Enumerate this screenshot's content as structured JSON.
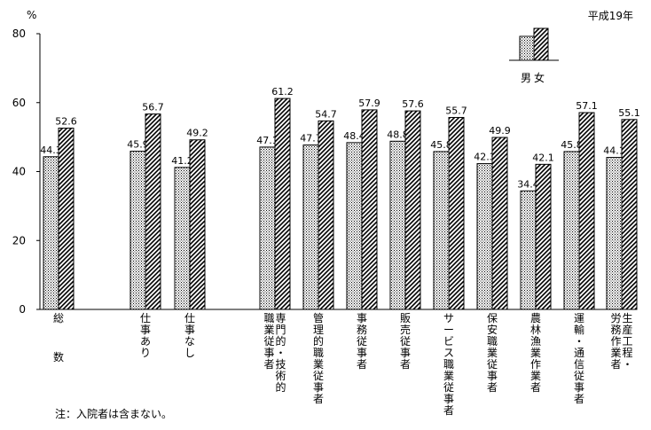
{
  "chart_data": {
    "type": "bar",
    "year_label": "平成19年",
    "unit_label": "%",
    "ylim": [
      0,
      80
    ],
    "yticks": [
      0,
      20,
      40,
      60,
      80
    ],
    "grid": false,
    "legend": {
      "position": "top-right",
      "text": "男女"
    },
    "categories": [
      {
        "lines": [
          "総",
          "数"
        ]
      },
      {
        "lines": [
          "仕事あり"
        ]
      },
      {
        "lines": [
          "仕事なし"
        ]
      },
      {
        "lines": [
          "専門的・技術的",
          "職業従事者"
        ]
      },
      {
        "lines": [
          "管理的職業従事者"
        ]
      },
      {
        "lines": [
          "事務従事者"
        ]
      },
      {
        "lines": [
          "販売従事者"
        ]
      },
      {
        "lines": [
          "サービス職業従事者"
        ]
      },
      {
        "lines": [
          "保安職業従事者"
        ]
      },
      {
        "lines": [
          "農林漁業作業者"
        ]
      },
      {
        "lines": [
          "運輸・通信従事者"
        ]
      },
      {
        "lines": [
          "生産工程・",
          "労務作業者"
        ]
      }
    ],
    "series": [
      {
        "name": "男",
        "pattern": "dots",
        "values": [
          44.3,
          45.9,
          41.2,
          47.1,
          47.7,
          48.4,
          48.8,
          45.8,
          42.3,
          34.4,
          45.8,
          44.1
        ],
        "labels": [
          "44.3",
          "45.9",
          "41.2",
          "47.1",
          "47.7",
          "48.4",
          "48.8",
          "45.8",
          "42.3",
          "34.4",
          "45.8",
          "44.1"
        ]
      },
      {
        "name": "女",
        "pattern": "hatch",
        "values": [
          52.6,
          56.7,
          49.2,
          61.2,
          54.7,
          57.9,
          57.6,
          55.7,
          49.9,
          42.1,
          57.1,
          55.1
        ],
        "labels": [
          "52.6",
          "56.7",
          "49.2",
          "61.2",
          "54.7",
          "57.9",
          "57.6",
          "55.7",
          "49.9",
          "42.1",
          "57.1",
          "55.1"
        ]
      }
    ],
    "footnote": "注：入院者は含まない。"
  },
  "colors": {
    "axis": "#000000",
    "dots": "#000000",
    "hatch": "#000000",
    "background": "#ffffff"
  }
}
